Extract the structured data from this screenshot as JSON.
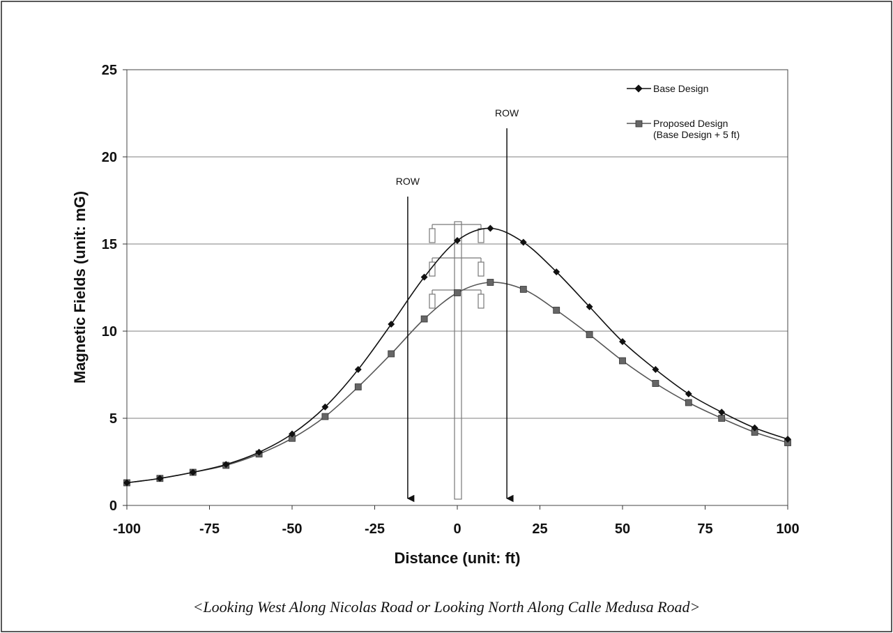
{
  "chart_data": {
    "type": "line",
    "xlabel": "Distance (unit: ft)",
    "ylabel": "Magnetic Fields (unit: mG)",
    "xlim": [
      -100,
      100
    ],
    "ylim": [
      0,
      25
    ],
    "x_ticks": [
      -100,
      -75,
      -50,
      -25,
      0,
      25,
      50,
      75,
      100
    ],
    "y_ticks": [
      0,
      5,
      10,
      15,
      20,
      25
    ],
    "grid": "horizontal",
    "legend_position": "top-right",
    "x": [
      -100,
      -90,
      -80,
      -70,
      -60,
      -50,
      -40,
      -30,
      -20,
      -10,
      0,
      10,
      20,
      30,
      40,
      50,
      60,
      70,
      80,
      90,
      100
    ],
    "series": [
      {
        "name": "Base Design",
        "marker": "diamond",
        "color": "#111111",
        "values": [
          1.3,
          1.55,
          1.9,
          2.35,
          3.05,
          4.1,
          5.65,
          7.8,
          10.4,
          13.1,
          15.2,
          15.9,
          15.1,
          13.4,
          11.4,
          9.4,
          7.8,
          6.4,
          5.35,
          4.45,
          3.8
        ]
      },
      {
        "name": "Proposed Design",
        "name_line2": "(Base Design + 5 ft)",
        "marker": "square",
        "color": "#555555",
        "values": [
          1.3,
          1.55,
          1.9,
          2.3,
          2.95,
          3.85,
          5.1,
          6.8,
          8.7,
          10.7,
          12.2,
          12.8,
          12.4,
          11.2,
          9.8,
          8.3,
          7.0,
          5.9,
          5.0,
          4.2,
          3.6
        ]
      }
    ],
    "annotations": [
      {
        "text": "ROW",
        "x": -15
      },
      {
        "text": "ROW",
        "x": 15
      }
    ]
  },
  "caption": "<Looking West Along Nicolas Road or Looking North Along Calle Medusa Road>"
}
